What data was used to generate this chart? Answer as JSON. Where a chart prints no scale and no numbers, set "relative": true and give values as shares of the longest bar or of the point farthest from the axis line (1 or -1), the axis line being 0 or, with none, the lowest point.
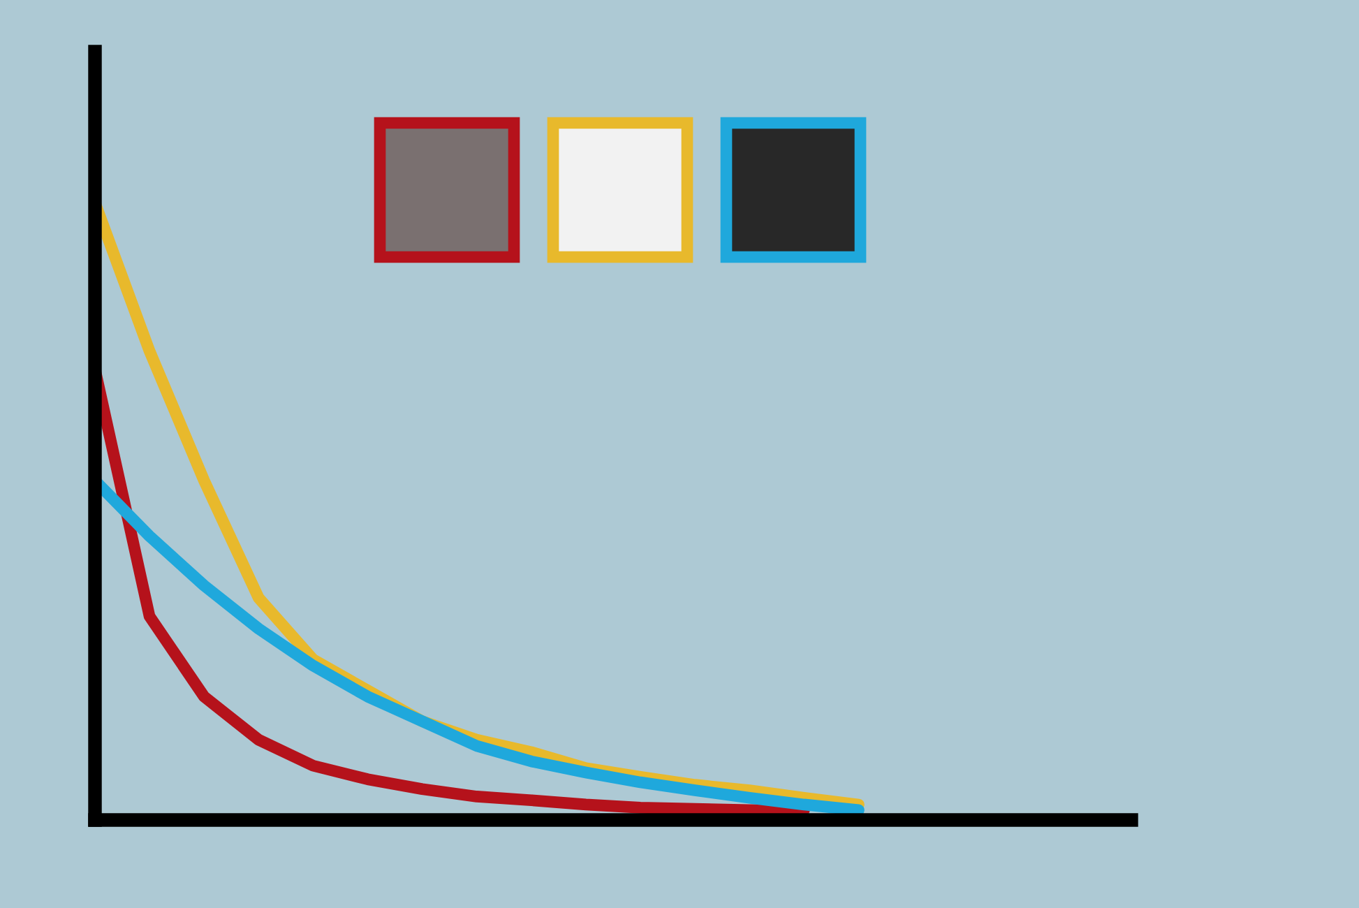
{
  "chart_data": {
    "type": "line",
    "relative": true,
    "categories": [
      null,
      null,
      null,
      null,
      null,
      null,
      null,
      null,
      null,
      null,
      null,
      null,
      null,
      null,
      null,
      null,
      null,
      null,
      null,
      null
    ],
    "series": [
      {
        "color": "#e8b92c",
        "values": [
          1.0,
          0.76,
          0.55,
          0.36,
          0.26,
          0.21,
          0.16,
          0.13,
          0.11,
          0.084,
          0.07,
          0.057,
          0.048,
          0.036,
          0.025,
          null,
          null,
          null,
          null,
          null
        ]
      },
      {
        "color": "#b5121b",
        "values": [
          0.73,
          0.33,
          0.2,
          0.13,
          0.088,
          0.066,
          0.05,
          0.038,
          0.032,
          0.025,
          0.02,
          0.018,
          0.016,
          0.016,
          null,
          null,
          null,
          null,
          null,
          null
        ]
      },
      {
        "color": "#1fa8dc",
        "values": [
          0.55,
          0.46,
          0.38,
          0.31,
          0.25,
          0.2,
          0.16,
          0.12,
          0.095,
          0.077,
          0.061,
          0.048,
          0.036,
          0.025,
          0.016,
          null,
          null,
          null,
          null,
          null
        ]
      }
    ],
    "marker": "none",
    "line_style": "solid",
    "grid": false,
    "legend": false
  }
}
